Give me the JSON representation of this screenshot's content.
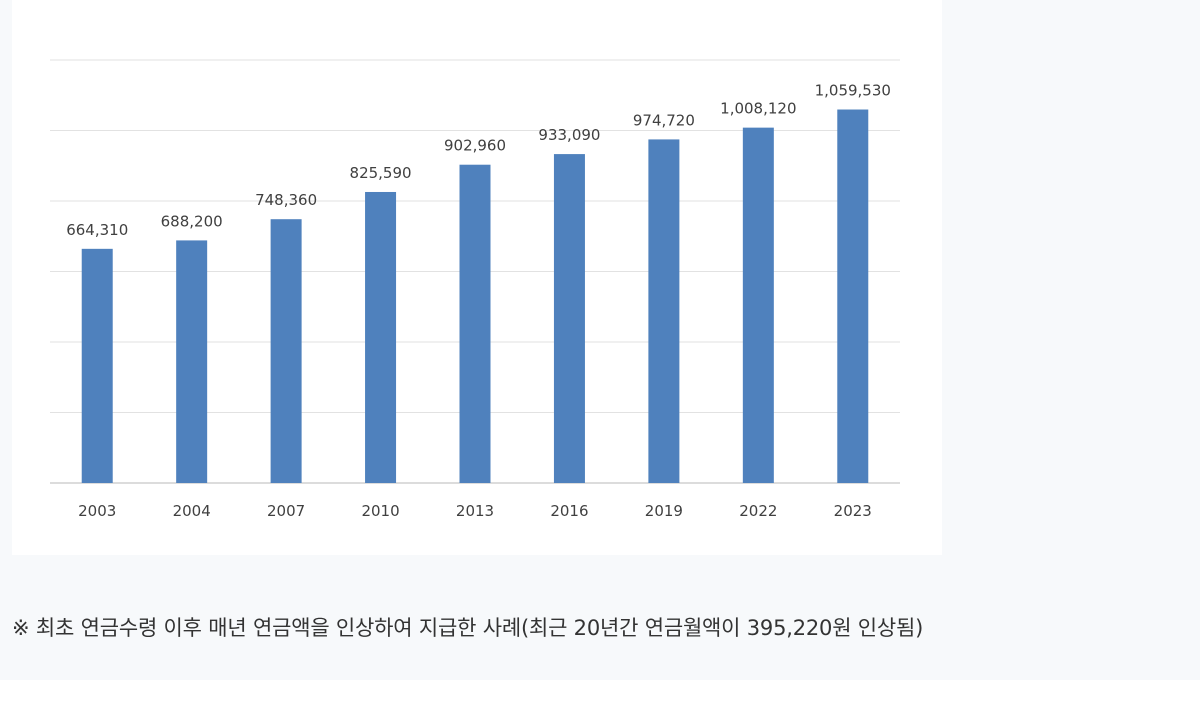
{
  "chart_data": {
    "type": "bar",
    "categories": [
      "2003",
      "2004",
      "2007",
      "2010",
      "2013",
      "2016",
      "2019",
      "2022",
      "2023"
    ],
    "values": [
      664310,
      688200,
      748360,
      825590,
      902960,
      933090,
      974720,
      1008120,
      1059530
    ],
    "value_labels": [
      "664,310",
      "688,200",
      "748,360",
      "825,590",
      "902,960",
      "933,090",
      "974,720",
      "1,008,120",
      "1,059,530"
    ],
    "ylim": [
      0,
      1200000
    ],
    "grid": true,
    "legend": "none",
    "bar_color": "#4f81bd"
  },
  "caption": "※ 최초 연금수령 이후 매년 연금액을 인상하여 지급한 사례(최근 20년간 연금월액이 395,220원 인상됨)"
}
